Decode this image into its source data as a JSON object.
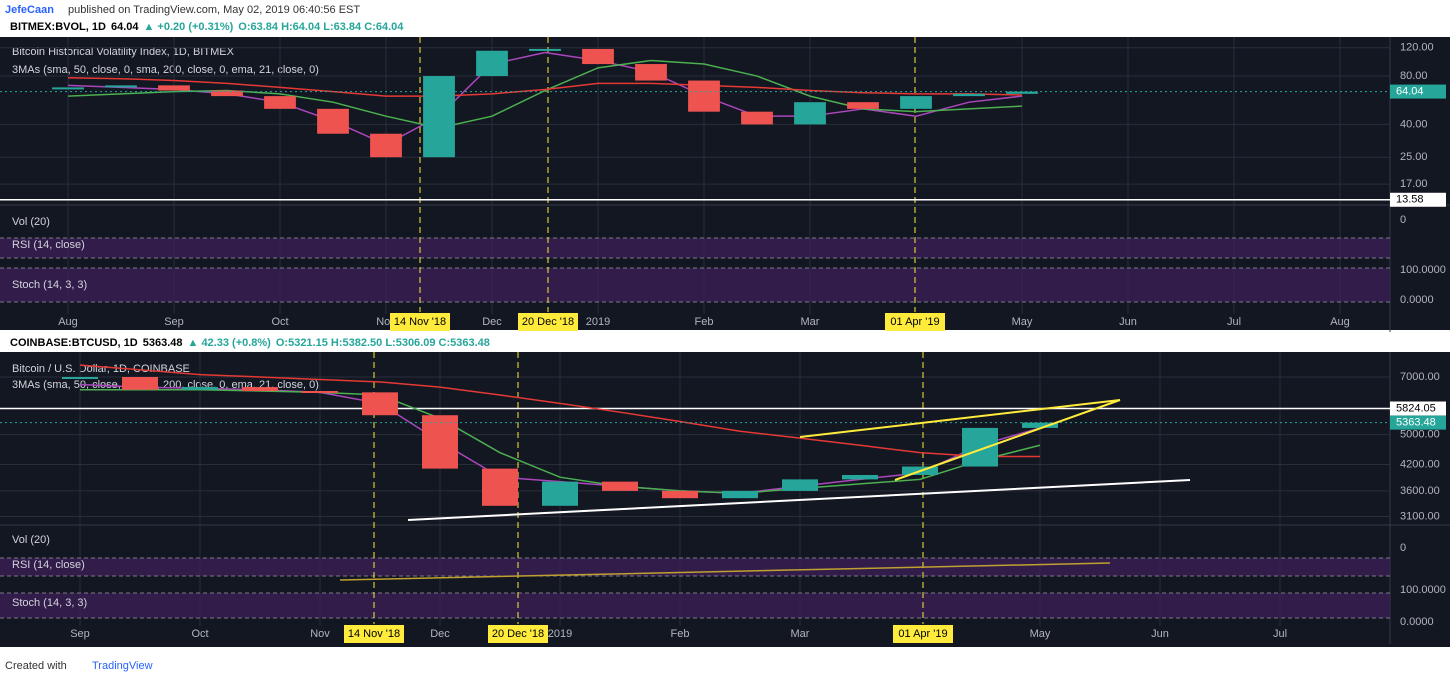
{
  "header": {
    "author": "JefeCaan",
    "published": "published on TradingView.com, May 02, 2019 06:40:56 EST"
  },
  "chart_data": [
    {
      "type": "candlestick",
      "symbol": "BITMEX:BVOL, 1D",
      "last": "64.04",
      "change": "▲ +0.20 (+0.31%)",
      "ohlc": "O:63.84 H:64.04 L:63.84 C:64.04",
      "title": "Bitcoin Historical Volatility Index, 1D, BITMEX",
      "indicator": "3MAs (sma, 50, close, 0, sma, 200, close, 0, ema, 21, close, 0)",
      "subpanes": [
        "Vol (20)",
        "RSI (14, close)",
        "Stoch (14, 3, 3)"
      ],
      "subpane_ticks": [
        "0",
        "100.0000",
        "0.0000"
      ],
      "events": [
        "14 Nov '18",
        "20 Dec '18",
        "01 Apr '19"
      ],
      "log_scale": true,
      "ylim": [
        12.6,
        140
      ],
      "yticks": [
        {
          "value": 120,
          "label": "120.00"
        },
        {
          "value": 80,
          "label": "80.00"
        },
        {
          "value": 40,
          "label": "40.00"
        },
        {
          "value": 25,
          "label": "25.00"
        },
        {
          "value": 17,
          "label": "17.00"
        }
      ],
      "levels": [
        13.58
      ],
      "categories": [
        "Aug",
        null,
        "Sep",
        null,
        "Oct",
        null,
        "Nov",
        null,
        "Dec",
        null,
        "2019",
        null,
        "Feb",
        null,
        "Mar",
        null,
        null,
        null,
        "May",
        null,
        "Jun",
        null,
        "Jul",
        null,
        "Aug"
      ],
      "series": [
        {
          "name": "BVOL",
          "values": [
            68,
            70,
            65,
            60,
            50,
            35,
            25,
            80,
            115,
            118,
            95,
            75,
            48,
            40,
            55,
            50,
            60,
            62,
            64.04,
            null,
            null,
            null,
            null,
            null,
            null
          ]
        },
        {
          "name": "EMA 21",
          "color": "#ab47bc",
          "values": [
            70,
            68,
            66,
            62,
            55,
            42,
            30,
            45,
            95,
            112,
            100,
            85,
            60,
            45,
            45,
            50,
            45,
            55,
            60,
            null,
            null,
            null,
            null,
            null,
            null
          ]
        },
        {
          "name": "SMA 50",
          "color": "#4caf50",
          "values": [
            60,
            62,
            64,
            65,
            62,
            55,
            45,
            38,
            45,
            65,
            90,
            100,
            95,
            80,
            60,
            50,
            48,
            50,
            52,
            null,
            null,
            null,
            null,
            null,
            null
          ]
        },
        {
          "name": "SMA 200",
          "color": "#e53935",
          "values": [
            78,
            77,
            75,
            72,
            68,
            64,
            60,
            60,
            62,
            66,
            72,
            72,
            70,
            68,
            65,
            63,
            62,
            62,
            61,
            null,
            null,
            null,
            null,
            null,
            null
          ]
        }
      ]
    },
    {
      "type": "candlestick",
      "symbol": "COINBASE:BTCUSD, 1D",
      "last": "5363.48",
      "change": "▲ 42.33 (+0.8%)",
      "ohlc": "O:5321.15 H:5382.50 L:5306.09 C:5363.48",
      "title": "Bitcoin / U.S. Dollar, 1D, COINBASE",
      "indicator": "3MAs (sma, 50, close, 0, sma, 200, close, 0, ema, 21, close, 0)",
      "subpanes": [
        "Vol (20)",
        "RSI (14, close)",
        "Stoch (14, 3, 3)"
      ],
      "subpane_ticks": [
        "0",
        "100.0000",
        "0.0000"
      ],
      "events": [
        "14 Nov '18",
        "20 Dec '18",
        "01 Apr '19"
      ],
      "log_scale": true,
      "ylim": [
        2950,
        8100
      ],
      "yticks": [
        {
          "value": 7000,
          "label": "7000.00"
        },
        {
          "value": 5000,
          "label": "5000.00"
        },
        {
          "value": 4200,
          "label": "4200.00"
        },
        {
          "value": 3600,
          "label": "3600.00"
        },
        {
          "value": 3100,
          "label": "3100.00"
        }
      ],
      "levels": [
        5824.05
      ],
      "categories": [
        "Sep",
        null,
        "Oct",
        null,
        "Nov",
        null,
        "Dec",
        null,
        "2019",
        null,
        "Feb",
        null,
        "Mar",
        null,
        null,
        null,
        "May",
        null,
        "Jun",
        null,
        "Jul",
        null
      ],
      "series": [
        {
          "name": "BTCUSD",
          "values": [
            7000,
            6500,
            6600,
            6450,
            6400,
            5600,
            4100,
            3300,
            3800,
            3600,
            3450,
            3600,
            3850,
            3950,
            4150,
            5200,
            5363.48,
            null,
            null,
            null,
            null,
            null
          ]
        },
        {
          "name": "EMA 21",
          "color": "#ab47bc",
          "values": [
            6700,
            6600,
            6550,
            6500,
            6400,
            6000,
            4800,
            3900,
            3800,
            3700,
            3600,
            3550,
            3700,
            3850,
            4000,
            4700,
            5200,
            null,
            null,
            null,
            null,
            null
          ]
        },
        {
          "name": "SMA 50",
          "color": "#4caf50",
          "values": [
            6500,
            6500,
            6500,
            6450,
            6400,
            6300,
            5500,
            4500,
            3900,
            3700,
            3600,
            3550,
            3650,
            3750,
            3850,
            4300,
            4700,
            null,
            null,
            null,
            null,
            null
          ]
        },
        {
          "name": "SMA 200",
          "color": "#e53935",
          "values": [
            7500,
            7300,
            7100,
            7000,
            6900,
            6800,
            6600,
            6300,
            6000,
            5700,
            5400,
            5100,
            4900,
            4700,
            4500,
            4400,
            4400,
            null,
            null,
            null,
            null,
            null
          ]
        }
      ]
    }
  ],
  "footer": {
    "created": "Created with",
    "brand": "TradingView"
  }
}
